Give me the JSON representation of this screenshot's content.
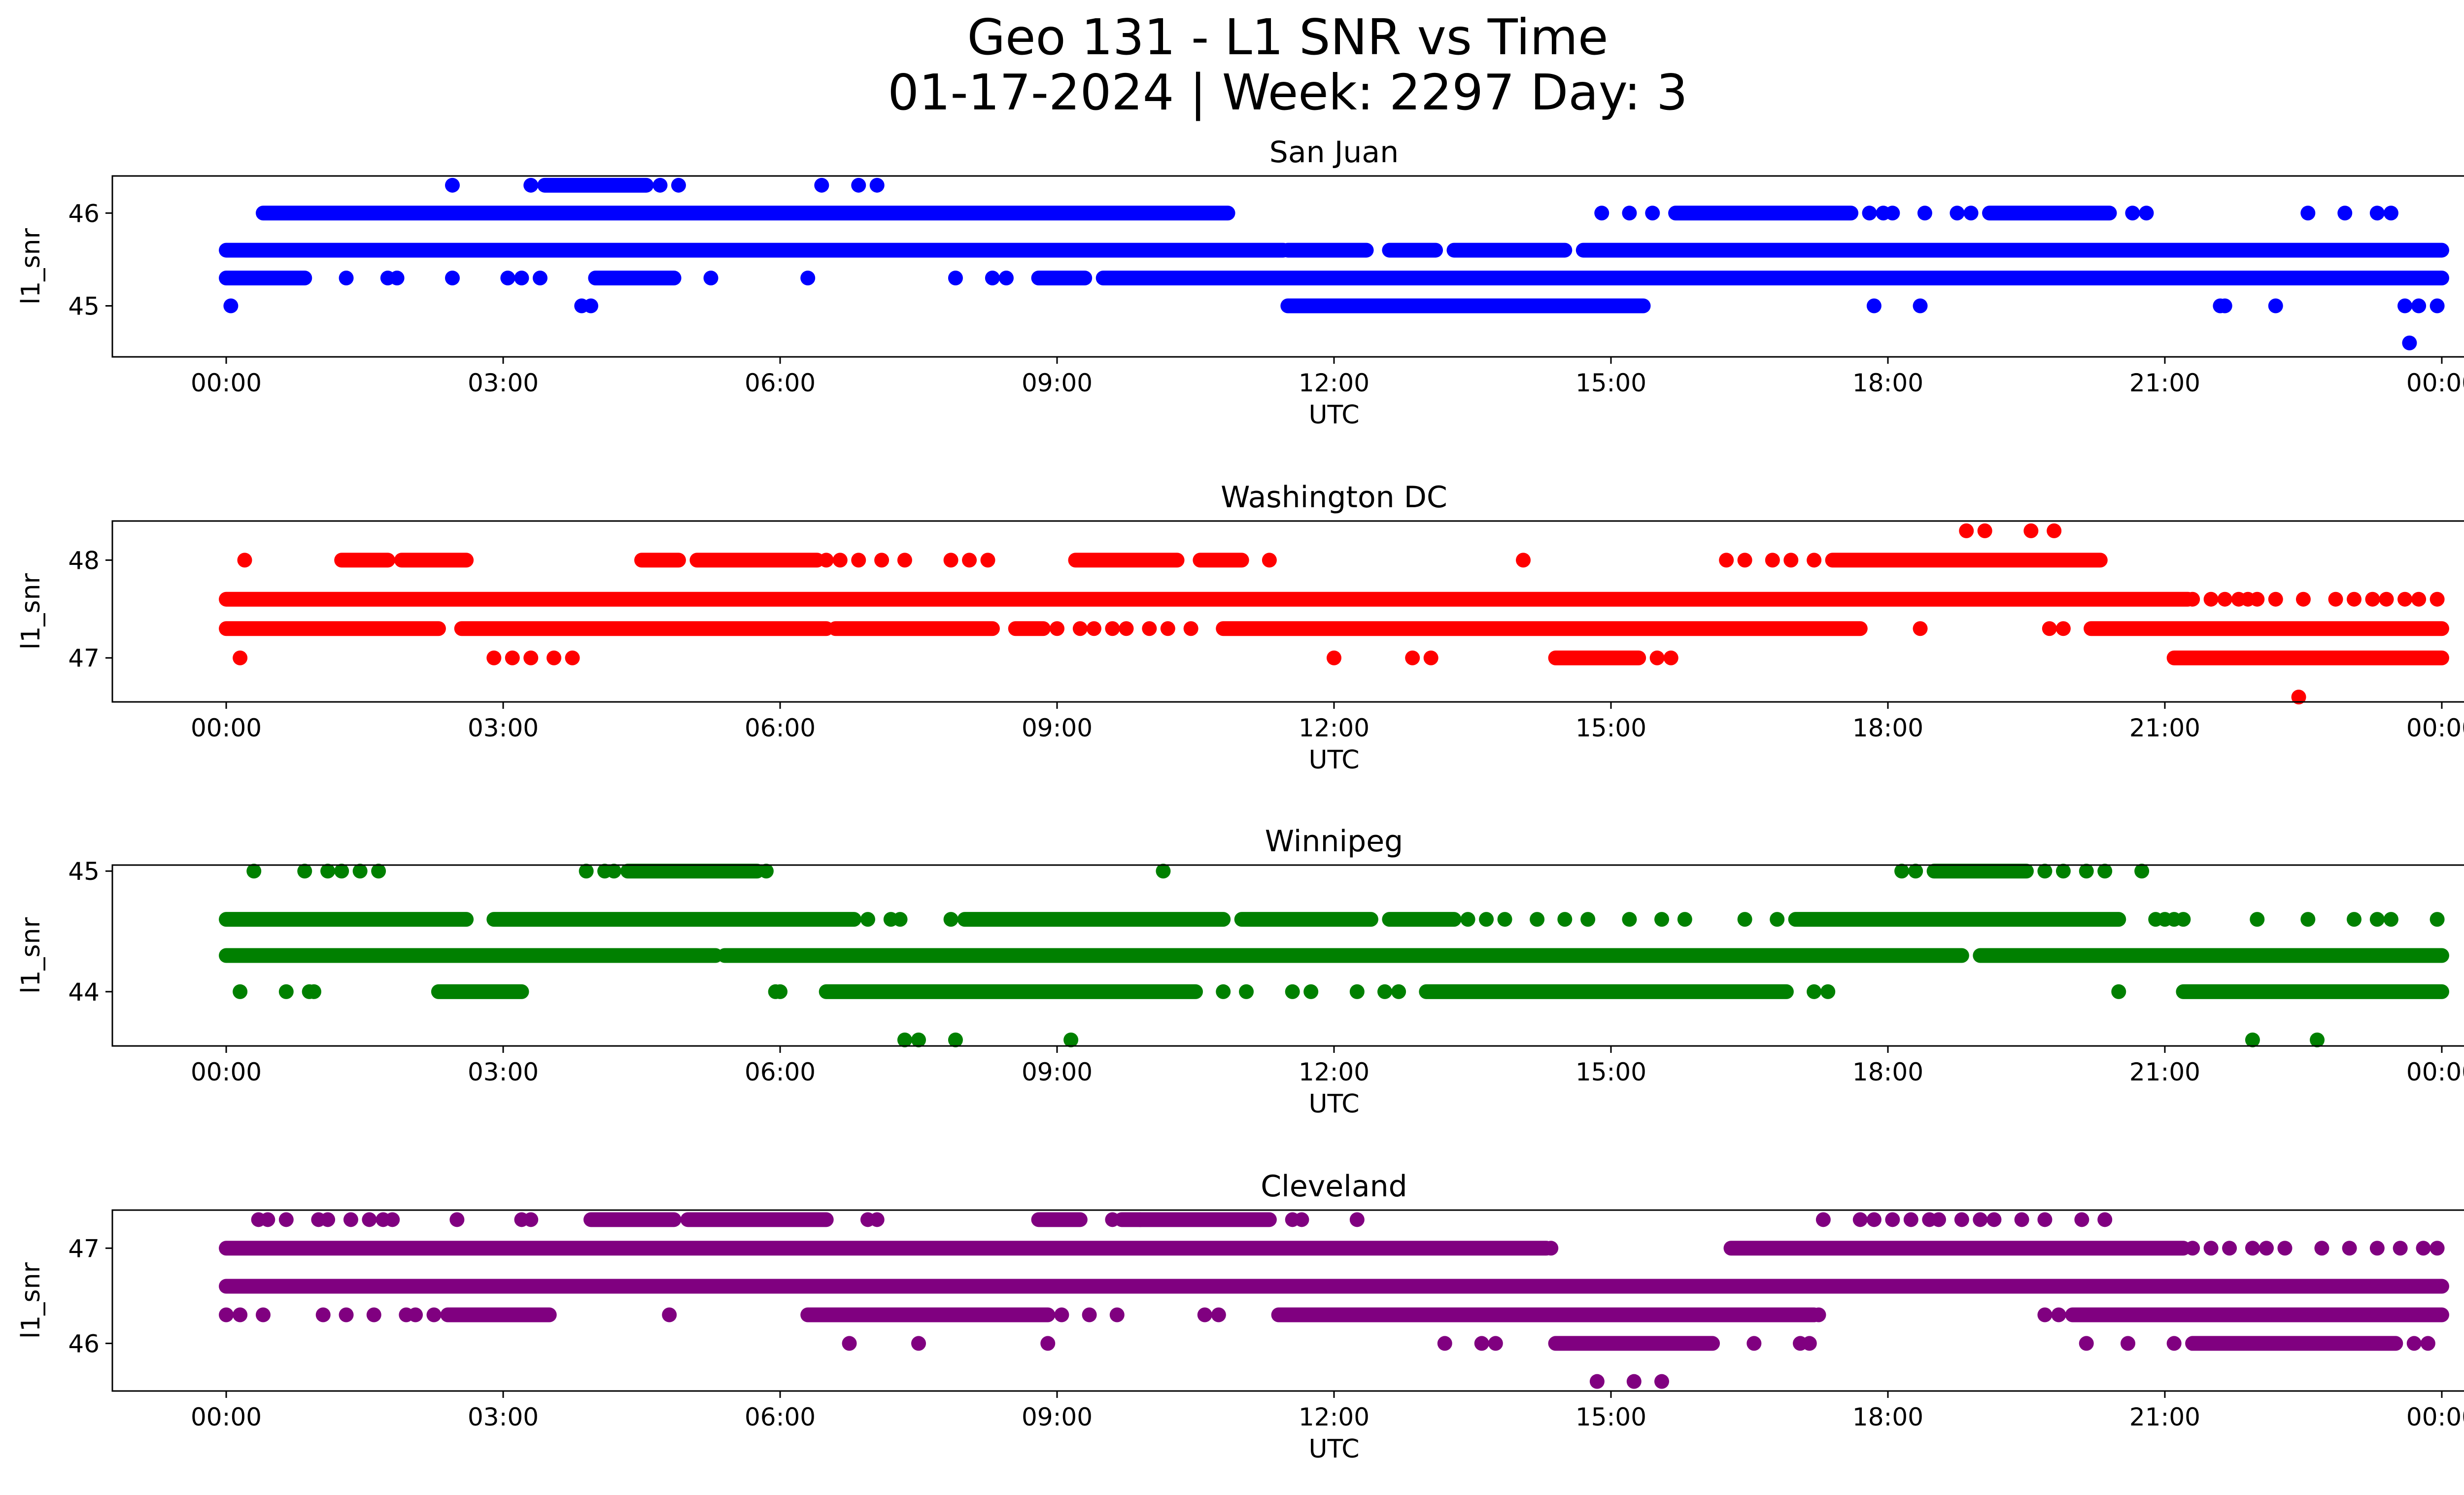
{
  "figure": {
    "title_line1": "Geo 131 - L1 SNR vs Time",
    "title_line2": "01-17-2024 | Week: 2297 Day: 3"
  },
  "chart_data": [
    {
      "type": "scatter",
      "title": "San Juan",
      "xlabel": "UTC",
      "ylabel": "l1_snr",
      "color": "#0000ff",
      "xlim": [
        "00:00",
        "24:00"
      ],
      "ylim": [
        44.45,
        46.4
      ],
      "x_ticks": [
        "00:00",
        "03:00",
        "06:00",
        "09:00",
        "12:00",
        "15:00",
        "18:00",
        "21:00",
        "00:00"
      ],
      "y_ticks": [
        45,
        46
      ],
      "bands": [
        {
          "y": 45.6,
          "ranges": [
            [
              0.0,
              11.45
            ],
            [
              11.5,
              12.35
            ],
            [
              12.6,
              13.1
            ],
            [
              13.3,
              14.5
            ],
            [
              14.7,
              24.0
            ]
          ]
        },
        {
          "y": 45.3,
          "ranges": [
            [
              0.0,
              0.85
            ],
            [
              4.0,
              4.85
            ],
            [
              8.8,
              9.3
            ],
            [
              9.5,
              10.4
            ],
            [
              10.3,
              24.0
            ]
          ],
          "isolated": [
            1.3,
            1.75,
            1.85,
            2.45,
            3.05,
            3.2,
            3.4,
            5.25,
            6.3,
            7.9,
            8.3,
            8.45
          ]
        },
        {
          "y": 46.0,
          "ranges": [
            [
              0.4,
              10.85
            ],
            [
              15.7,
              17.6
            ],
            [
              19.1,
              20.4
            ]
          ],
          "isolated": [
            14.9,
            15.2,
            15.45,
            17.8,
            17.95,
            18.05,
            18.4,
            18.75,
            18.9,
            20.65,
            20.8,
            22.55,
            22.95,
            23.3,
            23.45
          ]
        },
        {
          "y": 45.0,
          "ranges": [
            [
              11.5,
              15.35
            ]
          ],
          "isolated": [
            0.05,
            3.85,
            3.95,
            17.85,
            18.35,
            21.6,
            21.65,
            22.2,
            23.6,
            23.75,
            23.95
          ]
        },
        {
          "y": 46.3,
          "ranges": [
            [
              3.45,
              4.55
            ]
          ],
          "isolated": [
            2.45,
            3.3,
            4.7,
            4.9,
            6.45,
            6.85,
            7.05
          ]
        },
        {
          "y": 44.6,
          "isolated": [
            23.65
          ]
        }
      ]
    },
    {
      "type": "scatter",
      "title": "Washington DC",
      "xlabel": "UTC",
      "ylabel": "l1_snr",
      "color": "#ff0000",
      "xlim": [
        "00:00",
        "24:00"
      ],
      "ylim": [
        46.55,
        48.4
      ],
      "x_ticks": [
        "00:00",
        "03:00",
        "06:00",
        "09:00",
        "12:00",
        "15:00",
        "18:00",
        "21:00",
        "00:00"
      ],
      "y_ticks": [
        47,
        48
      ],
      "bands": [
        {
          "y": 47.6,
          "ranges": [
            [
              0.0,
              21.25
            ]
          ],
          "isolated": [
            21.3,
            21.5,
            21.65,
            21.8,
            21.9,
            22.0,
            22.2,
            22.5,
            22.85,
            23.05,
            23.25,
            23.4,
            23.6,
            23.75,
            23.95
          ]
        },
        {
          "y": 47.3,
          "ranges": [
            [
              0.0,
              2.3
            ],
            [
              2.55,
              6.5
            ],
            [
              6.6,
              8.3
            ],
            [
              8.55,
              8.85
            ],
            [
              10.8,
              17.7
            ],
            [
              20.2,
              24.0
            ]
          ],
          "isolated": [
            9.0,
            9.25,
            9.4,
            9.6,
            9.75,
            10.0,
            10.2,
            10.45,
            18.35,
            19.75,
            19.9
          ]
        },
        {
          "y": 48.0,
          "ranges": [
            [
              1.25,
              1.75
            ],
            [
              1.9,
              2.6
            ],
            [
              4.5,
              4.9
            ],
            [
              5.1,
              6.4
            ],
            [
              9.2,
              10.3
            ],
            [
              10.55,
              11.0
            ],
            [
              17.4,
              20.3
            ]
          ],
          "isolated": [
            0.2,
            6.5,
            6.65,
            6.85,
            7.1,
            7.35,
            7.85,
            8.05,
            8.25,
            11.3,
            14.05,
            16.25,
            16.45,
            16.75,
            16.95,
            17.2
          ]
        },
        {
          "y": 47.0,
          "ranges": [
            [
              14.4,
              15.3
            ],
            [
              21.1,
              24.0
            ]
          ],
          "isolated": [
            0.15,
            2.9,
            3.1,
            3.3,
            3.55,
            3.75,
            12.0,
            12.85,
            13.05,
            15.5,
            15.65
          ]
        },
        {
          "y": 48.3,
          "isolated": [
            18.85,
            19.05,
            19.55,
            19.8
          ]
        },
        {
          "y": 46.6,
          "isolated": [
            22.45
          ]
        }
      ]
    },
    {
      "type": "scatter",
      "title": "Winnipeg",
      "xlabel": "UTC",
      "ylabel": "l1_snr",
      "color": "#008000",
      "xlim": [
        "00:00",
        "24:00"
      ],
      "ylim": [
        43.55,
        45.05
      ],
      "x_ticks": [
        "00:00",
        "03:00",
        "06:00",
        "09:00",
        "12:00",
        "15:00",
        "18:00",
        "21:00",
        "00:00"
      ],
      "y_ticks": [
        44,
        45
      ],
      "bands": [
        {
          "y": 44.3,
          "ranges": [
            [
              0.0,
              5.3
            ],
            [
              5.4,
              18.8
            ],
            [
              19.0,
              24.0
            ]
          ]
        },
        {
          "y": 44.6,
          "ranges": [
            [
              0.0,
              2.6
            ],
            [
              2.9,
              6.8
            ],
            [
              8.0,
              10.8
            ],
            [
              11.0,
              12.4
            ],
            [
              12.6,
              13.3
            ],
            [
              17.0,
              20.5
            ]
          ],
          "isolated": [
            6.95,
            7.2,
            7.3,
            7.85,
            13.45,
            13.65,
            13.85,
            14.2,
            14.5,
            14.75,
            15.2,
            15.55,
            15.8,
            16.45,
            16.8,
            20.9,
            21.0,
            21.1,
            21.2,
            22.0,
            22.55,
            23.05,
            23.3,
            23.45,
            23.95
          ]
        },
        {
          "y": 44.0,
          "ranges": [
            [
              2.3,
              3.2
            ],
            [
              6.5,
              10.5
            ],
            [
              13.0,
              16.9
            ],
            [
              21.2,
              24.0
            ]
          ],
          "isolated": [
            0.15,
            0.65,
            0.9,
            0.95,
            5.95,
            6.0,
            10.8,
            11.05,
            11.55,
            11.75,
            12.25,
            12.55,
            12.7,
            17.2,
            17.35,
            20.5
          ]
        },
        {
          "y": 45.0,
          "ranges": [
            [
              4.35,
              5.75
            ],
            [
              18.5,
              19.5
            ]
          ],
          "isolated": [
            0.3,
            0.85,
            1.1,
            1.25,
            1.45,
            1.65,
            3.9,
            4.1,
            4.2,
            5.85,
            10.15,
            18.15,
            18.3,
            19.7,
            19.9,
            20.15,
            20.35,
            20.75
          ]
        },
        {
          "y": 43.6,
          "isolated": [
            7.35,
            7.5,
            7.9,
            9.15,
            21.95,
            22.65
          ]
        }
      ]
    },
    {
      "type": "scatter",
      "title": "Cleveland",
      "xlabel": "UTC",
      "ylabel": "l1_snr",
      "color": "#800080",
      "xlim": [
        "00:00",
        "24:00"
      ],
      "ylim": [
        45.5,
        47.4
      ],
      "x_ticks": [
        "00:00",
        "03:00",
        "06:00",
        "09:00",
        "12:00",
        "15:00",
        "18:00",
        "21:00",
        "00:00"
      ],
      "y_ticks": [
        46,
        47
      ],
      "bands": [
        {
          "y": 46.6,
          "ranges": [
            [
              0.0,
              24.0
            ]
          ]
        },
        {
          "y": 47.0,
          "ranges": [
            [
              0.0,
              14.3
            ],
            [
              16.3,
              21.2
            ]
          ],
          "isolated": [
            14.35,
            21.3,
            21.5,
            21.7,
            21.95,
            22.1,
            22.3,
            22.7,
            23.0,
            23.3,
            23.55,
            23.8,
            23.95
          ]
        },
        {
          "y": 46.3,
          "ranges": [
            [
              2.4,
              3.5
            ],
            [
              6.3,
              8.9
            ],
            [
              11.4,
              17.2
            ],
            [
              20.0,
              24.0
            ]
          ],
          "isolated": [
            0.0,
            0.15,
            0.4,
            1.05,
            1.3,
            1.6,
            1.95,
            2.05,
            2.25,
            4.8,
            6.6,
            6.8,
            9.05,
            9.35,
            9.65,
            10.6,
            10.75,
            17.25,
            19.7,
            19.85
          ]
        },
        {
          "y": 47.3,
          "ranges": [
            [
              3.95,
              4.85
            ],
            [
              5.0,
              6.5
            ],
            [
              8.8,
              9.25
            ],
            [
              9.7,
              11.3
            ]
          ],
          "isolated": [
            0.35,
            0.45,
            0.65,
            1.0,
            1.1,
            1.35,
            1.55,
            1.7,
            1.8,
            2.5,
            3.2,
            3.3,
            6.95,
            7.05,
            9.6,
            9.9,
            11.55,
            11.65,
            12.25,
            17.3,
            17.7,
            17.85,
            18.05,
            18.25,
            18.45,
            18.55,
            18.8,
            19.0,
            19.15,
            19.45,
            19.7,
            20.1,
            20.35
          ]
        },
        {
          "y": 46.0,
          "ranges": [
            [
              14.4,
              16.1
            ],
            [
              21.3,
              23.5
            ]
          ],
          "isolated": [
            6.75,
            7.5,
            8.9,
            13.2,
            13.6,
            13.75,
            16.55,
            17.05,
            17.15,
            20.15,
            20.6,
            21.1,
            23.7,
            23.85
          ]
        },
        {
          "y": 45.6,
          "isolated": [
            14.85,
            15.25,
            15.55
          ]
        }
      ]
    }
  ]
}
